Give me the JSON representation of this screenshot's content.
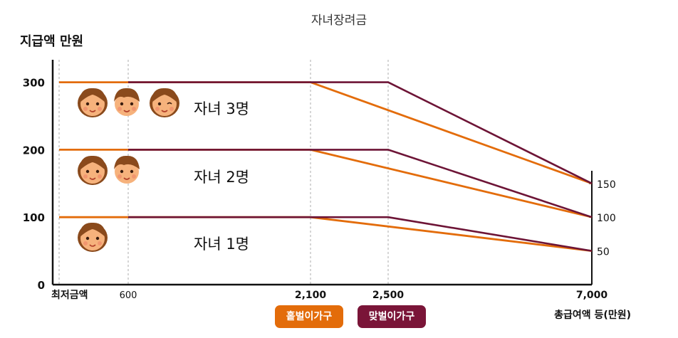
{
  "page": {
    "title": "자녀장려금",
    "ylabel": "지급액 만원",
    "xlabel": "총급여액 등(만원)"
  },
  "legend": {
    "single": "홑벌이가구",
    "dual": "맞벌이가구"
  },
  "series_labels": [
    "자녀 3명",
    "자녀 2명",
    "자녀 1명"
  ],
  "colors": {
    "single": "#e36c0a",
    "dual": "#6d1436",
    "axis": "#111111",
    "guide": "#bbbbbb"
  },
  "chart_data": {
    "type": "line",
    "title": "자녀장려금",
    "ylabel": "지급액 만원",
    "xlabel": "총급여액 등(만원)",
    "x_ticks": [
      "최저금액",
      "600",
      "2,100",
      "2,500",
      "7,000"
    ],
    "y_ticks_left": [
      "0",
      "100",
      "200",
      "300"
    ],
    "y_ticks_right": [
      "50",
      "100",
      "150"
    ],
    "series": [
      {
        "name": "홑벌이가구",
        "children": 3,
        "points": [
          [
            0,
            300
          ],
          [
            2100,
            300
          ],
          [
            7000,
            150
          ]
        ]
      },
      {
        "name": "맞벌이가구",
        "children": 3,
        "points": [
          [
            600,
            300
          ],
          [
            2500,
            300
          ],
          [
            7000,
            150
          ]
        ]
      },
      {
        "name": "홑벌이가구",
        "children": 2,
        "points": [
          [
            0,
            200
          ],
          [
            2100,
            200
          ],
          [
            7000,
            100
          ]
        ]
      },
      {
        "name": "맞벌이가구",
        "children": 2,
        "points": [
          [
            600,
            200
          ],
          [
            2500,
            200
          ],
          [
            7000,
            100
          ]
        ]
      },
      {
        "name": "홑벌이가구",
        "children": 1,
        "points": [
          [
            0,
            100
          ],
          [
            2100,
            100
          ],
          [
            7000,
            50
          ]
        ]
      },
      {
        "name": "맞벌이가구",
        "children": 1,
        "points": [
          [
            600,
            100
          ],
          [
            2500,
            100
          ],
          [
            7000,
            50
          ]
        ]
      }
    ],
    "icons": [
      {
        "label": "자녀 3명",
        "faces": [
          "girl",
          "boy",
          "girl-wink"
        ]
      },
      {
        "label": "자녀 2명",
        "faces": [
          "girl",
          "boy"
        ]
      },
      {
        "label": "자녀 1명",
        "faces": [
          "girl"
        ]
      }
    ]
  }
}
